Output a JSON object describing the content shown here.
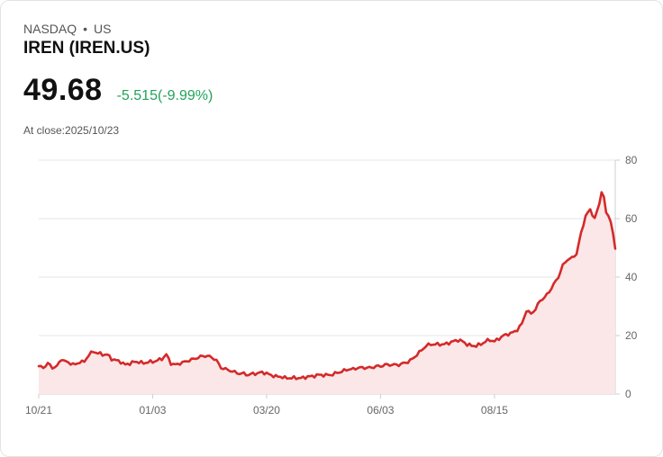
{
  "quote": {
    "exchange": "NASDAQ",
    "region": "US",
    "separator": "•",
    "title": "IREN (IREN.US)",
    "price": "49.68",
    "change": "-5.515(-9.99%)",
    "close_label": "At close:2025/10/23"
  },
  "colors": {
    "line": "#d42a2a",
    "fill": "#fbe7e7",
    "change": "#21a35a",
    "grid": "#e6e6e6"
  },
  "chart_data": {
    "type": "area",
    "title": "IREN (IREN.US)",
    "xlabel": "",
    "ylabel": "",
    "ylim": [
      0,
      80
    ],
    "y_ticks": [
      0,
      20,
      40,
      60,
      80
    ],
    "y_axis_side": "right",
    "x_ticks": [
      {
        "label": "10/21",
        "index": 0
      },
      {
        "label": "01/03",
        "index": 50
      },
      {
        "label": "03/20",
        "index": 100
      },
      {
        "label": "06/03",
        "index": 150
      },
      {
        "label": "08/15",
        "index": 200
      }
    ],
    "anchor_points": [
      [
        0,
        9.5
      ],
      [
        2,
        9
      ],
      [
        4,
        10.5
      ],
      [
        6,
        9
      ],
      [
        8,
        9.5
      ],
      [
        10,
        12
      ],
      [
        12,
        11
      ],
      [
        14,
        10.5
      ],
      [
        16,
        10
      ],
      [
        18,
        11
      ],
      [
        20,
        11
      ],
      [
        22,
        13.5
      ],
      [
        24,
        14.5
      ],
      [
        26,
        14
      ],
      [
        28,
        13.5
      ],
      [
        30,
        13.5
      ],
      [
        32,
        12
      ],
      [
        34,
        11.5
      ],
      [
        36,
        11
      ],
      [
        38,
        10
      ],
      [
        40,
        10.5
      ],
      [
        42,
        11
      ],
      [
        44,
        11
      ],
      [
        46,
        10.5
      ],
      [
        48,
        11
      ],
      [
        50,
        11
      ],
      [
        52,
        11.5
      ],
      [
        54,
        12
      ],
      [
        56,
        13.5
      ],
      [
        58,
        10.5
      ],
      [
        60,
        10
      ],
      [
        62,
        10.5
      ],
      [
        64,
        11
      ],
      [
        66,
        11.5
      ],
      [
        68,
        12
      ],
      [
        70,
        12.5
      ],
      [
        72,
        13
      ],
      [
        74,
        13
      ],
      [
        76,
        12.5
      ],
      [
        78,
        11.5
      ],
      [
        80,
        9
      ],
      [
        82,
        8.5
      ],
      [
        84,
        8
      ],
      [
        86,
        7.5
      ],
      [
        88,
        7
      ],
      [
        90,
        7
      ],
      [
        92,
        6.5
      ],
      [
        94,
        7
      ],
      [
        96,
        7
      ],
      [
        98,
        7.5
      ],
      [
        100,
        7
      ],
      [
        102,
        6.5
      ],
      [
        104,
        6
      ],
      [
        106,
        6
      ],
      [
        108,
        5.5
      ],
      [
        110,
        5.5
      ],
      [
        112,
        5.5
      ],
      [
        114,
        5.5
      ],
      [
        116,
        5.5
      ],
      [
        118,
        6
      ],
      [
        120,
        6
      ],
      [
        122,
        6.5
      ],
      [
        124,
        6.5
      ],
      [
        126,
        6.5
      ],
      [
        128,
        6.5
      ],
      [
        130,
        7
      ],
      [
        132,
        7.5
      ],
      [
        134,
        8
      ],
      [
        136,
        8.5
      ],
      [
        138,
        8.5
      ],
      [
        140,
        9
      ],
      [
        142,
        9
      ],
      [
        144,
        9
      ],
      [
        146,
        9
      ],
      [
        148,
        9.5
      ],
      [
        150,
        9.5
      ],
      [
        152,
        10
      ],
      [
        154,
        10
      ],
      [
        156,
        10
      ],
      [
        158,
        10
      ],
      [
        160,
        10.5
      ],
      [
        162,
        11
      ],
      [
        164,
        12
      ],
      [
        166,
        13.5
      ],
      [
        168,
        15
      ],
      [
        170,
        16.5
      ],
      [
        172,
        17
      ],
      [
        174,
        17
      ],
      [
        176,
        17
      ],
      [
        178,
        17
      ],
      [
        180,
        17.5
      ],
      [
        182,
        18
      ],
      [
        184,
        18.5
      ],
      [
        186,
        18
      ],
      [
        188,
        17
      ],
      [
        190,
        16.5
      ],
      [
        192,
        16.5
      ],
      [
        194,
        17
      ],
      [
        196,
        18
      ],
      [
        198,
        18.5
      ],
      [
        200,
        18
      ],
      [
        202,
        19
      ],
      [
        204,
        20
      ],
      [
        206,
        20.5
      ],
      [
        208,
        21
      ],
      [
        210,
        22
      ],
      [
        212,
        24
      ],
      [
        214,
        28.5
      ],
      [
        216,
        27.5
      ],
      [
        218,
        29
      ],
      [
        220,
        32
      ],
      [
        222,
        33
      ],
      [
        224,
        35
      ],
      [
        226,
        37.5
      ],
      [
        228,
        40
      ],
      [
        230,
        44
      ],
      [
        232,
        46
      ],
      [
        234,
        46.5
      ],
      [
        236,
        48
      ],
      [
        238,
        55
      ],
      [
        240,
        61
      ],
      [
        242,
        63
      ],
      [
        244,
        60
      ],
      [
        246,
        65
      ],
      [
        247,
        69.5
      ],
      [
        248,
        67
      ],
      [
        249,
        62
      ],
      [
        250,
        61
      ],
      [
        251,
        59
      ],
      [
        252,
        55
      ],
      [
        253,
        49.68
      ]
    ]
  }
}
